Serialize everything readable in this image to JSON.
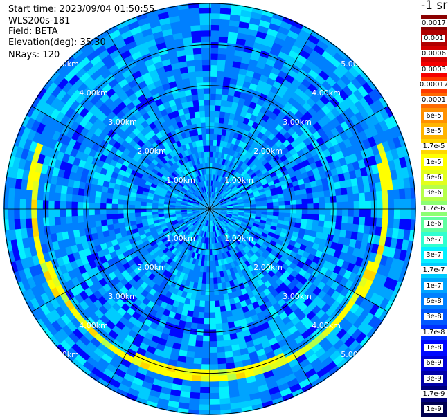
{
  "info": {
    "start_time": "Start time: 2023/09/04 01:50:55",
    "instrument": "WLS200s-181",
    "field": "Field: BETA",
    "elevation": "Elevation(deg): 35.30",
    "nrays": "NRays: 120"
  },
  "colorbar": {
    "title": "-1 sr",
    "levels": [
      {
        "label": "0.0017",
        "color": "#8b0000"
      },
      {
        "label": "0.001",
        "color": "#b00000"
      },
      {
        "label": "0.0006",
        "color": "#d40000"
      },
      {
        "label": "0.0003",
        "color": "#f50000"
      },
      {
        "label": "0.00017",
        "color": "#ff3a00"
      },
      {
        "label": "0.0001",
        "color": "#ff6a00"
      },
      {
        "label": "6e-5",
        "color": "#ff9000"
      },
      {
        "label": "3e-5",
        "color": "#ffb400"
      },
      {
        "label": "1.7e-5",
        "color": "#ffd600"
      },
      {
        "label": "1e-5",
        "color": "#ffff00"
      },
      {
        "label": "6e-6",
        "color": "#e2ff1d"
      },
      {
        "label": "3e-6",
        "color": "#b6ff49"
      },
      {
        "label": "1.7e-6",
        "color": "#8cff73"
      },
      {
        "label": "1e-6",
        "color": "#5fffa0"
      },
      {
        "label": "6e-7",
        "color": "#30ffd0"
      },
      {
        "label": "3e-7",
        "color": "#05f0ff"
      },
      {
        "label": "1.7e-7",
        "color": "#00ccff"
      },
      {
        "label": "1e-7",
        "color": "#00a4ff"
      },
      {
        "label": "6e-8",
        "color": "#0080ff"
      },
      {
        "label": "3e-8",
        "color": "#0058ff"
      },
      {
        "label": "1.7e-8",
        "color": "#0030ff"
      },
      {
        "label": "1e-8",
        "color": "#0008ff"
      },
      {
        "label": "6e-9",
        "color": "#0000d6"
      },
      {
        "label": "3e-9",
        "color": "#0000a8"
      },
      {
        "label": "1.7e-9",
        "color": "#00007a"
      },
      {
        "label": "1e-9",
        "color": "#000050"
      }
    ]
  },
  "chart_data": {
    "type": "heatmap",
    "projection": "polar",
    "field": "BETA",
    "nrays": 120,
    "range_rings_km": [
      1,
      2,
      3,
      4,
      5
    ],
    "max_range_km": 5.0,
    "azimuth_spokes_deg": [
      0,
      30,
      60,
      90,
      120,
      150,
      180,
      210,
      240,
      270,
      300,
      330
    ],
    "ring_labels": [
      "1.00km",
      "2.00km",
      "3.00km",
      "4.00km",
      "5.00km"
    ],
    "background_level": "3e-8 to 3e-7",
    "enhanced_arc": {
      "level": "1e-5 to 3e-5",
      "range_km": 4.3,
      "azimuth_deg": [
        70,
        290
      ]
    }
  }
}
